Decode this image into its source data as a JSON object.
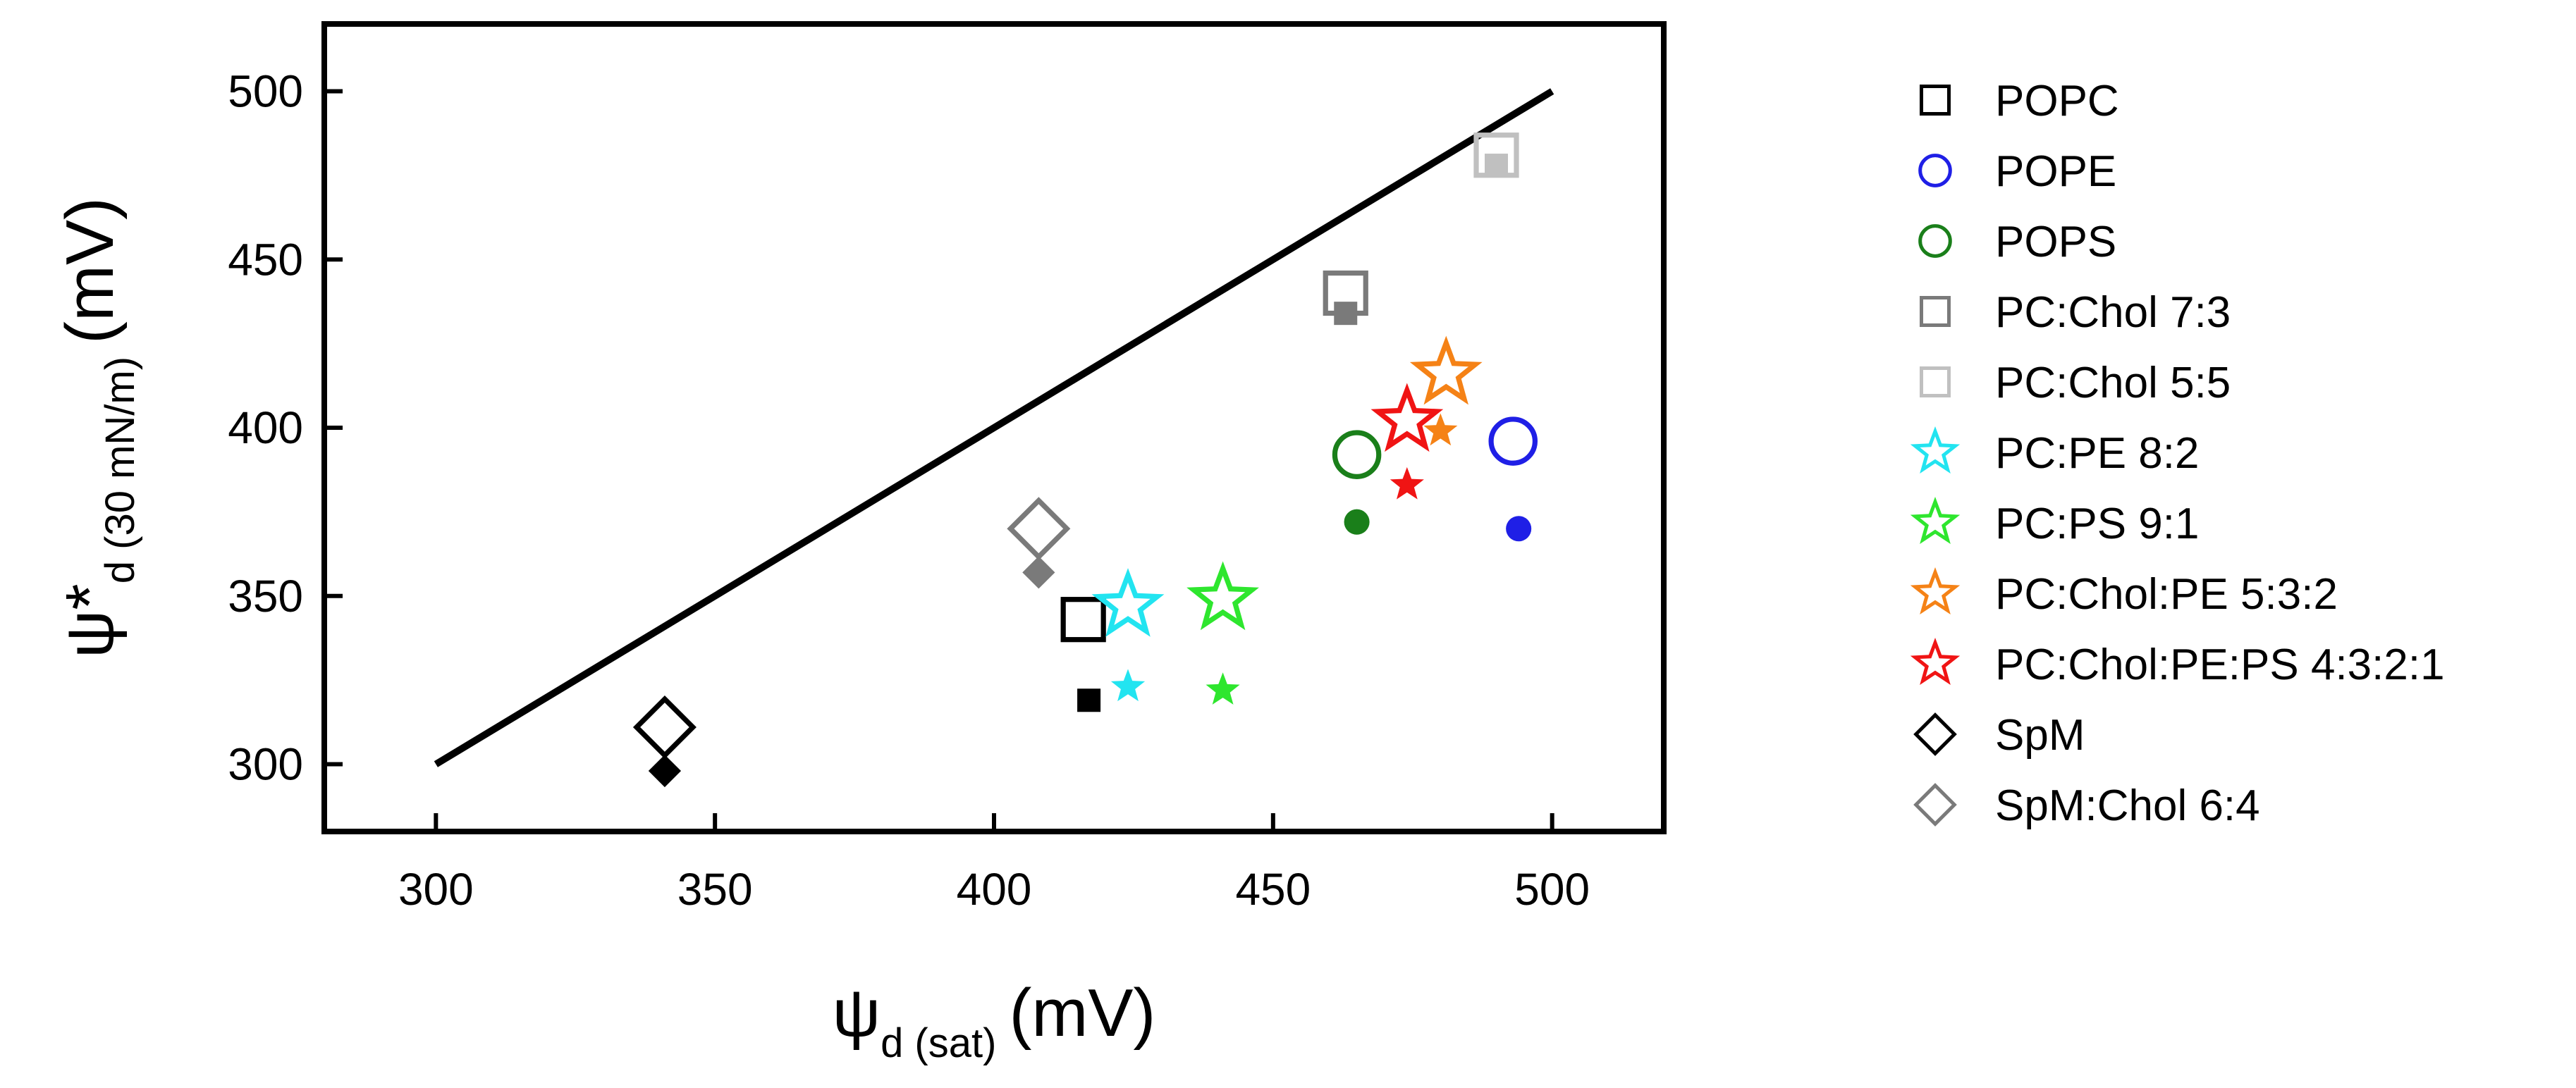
{
  "chart_data": {
    "type": "scatter",
    "xlabel": {
      "symbol": "ψ",
      "sub": "d (sat)",
      "unit": "(mV)"
    },
    "ylabel": {
      "symbol": "ψ*",
      "sub": "d (30 mN/m)",
      "unit": "(mV)"
    },
    "xlim": [
      280,
      520
    ],
    "ylim": [
      280,
      520
    ],
    "xticks": [
      300,
      350,
      400,
      450,
      500
    ],
    "yticks": [
      300,
      350,
      400,
      450,
      500
    ],
    "grid": false,
    "legend_position": "right-outside",
    "reference_line": {
      "name": "y = x",
      "x": [
        300,
        500
      ],
      "y": [
        300,
        500
      ],
      "color": "#000000"
    },
    "series": [
      {
        "name": "POPC",
        "marker": "square",
        "color": "#000000",
        "open": {
          "x": 416,
          "y": 343
        },
        "filled": {
          "x": 417,
          "y": 319
        }
      },
      {
        "name": "POPE",
        "marker": "circle",
        "color": "#1f1fe6",
        "open": {
          "x": 493,
          "y": 396
        },
        "filled": {
          "x": 494,
          "y": 370
        }
      },
      {
        "name": "POPS",
        "marker": "circle",
        "color": "#1a7f1a",
        "open": {
          "x": 465,
          "y": 392
        },
        "filled": {
          "x": 465,
          "y": 372
        }
      },
      {
        "name": "PC:Chol 7:3",
        "marker": "square",
        "color": "#7a7a7a",
        "open": {
          "x": 463,
          "y": 440
        },
        "filled": {
          "x": 463,
          "y": 434
        }
      },
      {
        "name": "PC:Chol 5:5",
        "marker": "square",
        "color": "#c0c0c0",
        "open": {
          "x": 490,
          "y": 481
        },
        "filled": {
          "x": 490,
          "y": 478
        }
      },
      {
        "name": "PC:PE 8:2",
        "marker": "star",
        "color": "#22e4f0",
        "open": {
          "x": 424,
          "y": 347
        },
        "filled": {
          "x": 424,
          "y": 323
        }
      },
      {
        "name": "PC:PS 9:1",
        "marker": "star",
        "color": "#2ee62e",
        "open": {
          "x": 441,
          "y": 349
        },
        "filled": {
          "x": 441,
          "y": 322
        }
      },
      {
        "name": "PC:Chol:PE 5:3:2",
        "marker": "star",
        "color": "#f58216",
        "open": {
          "x": 481,
          "y": 416
        },
        "filled": {
          "x": 480,
          "y": 399
        }
      },
      {
        "name": "PC:Chol:PE:PS 4:3:2:1",
        "marker": "star",
        "color": "#f01414",
        "open": {
          "x": 474,
          "y": 402
        },
        "filled": {
          "x": 474,
          "y": 383
        }
      },
      {
        "name": "SpM",
        "marker": "diamond",
        "color": "#000000",
        "open": {
          "x": 341,
          "y": 311
        },
        "filled": {
          "x": 341,
          "y": 298
        }
      },
      {
        "name": "SpM:Chol 6:4",
        "marker": "diamond",
        "color": "#7a7a7a",
        "open": {
          "x": 408,
          "y": 370
        },
        "filled": {
          "x": 408,
          "y": 357
        }
      }
    ]
  }
}
